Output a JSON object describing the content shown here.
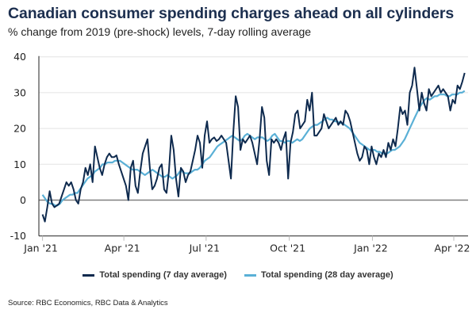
{
  "chart_data": {
    "type": "line",
    "title": "Canadian consumer spending charges ahead on all cylinders",
    "subtitle": "% change from 2019 (pre-shock) levels, 7-day rolling average",
    "xlabel": "",
    "ylabel": "",
    "ylim": [
      -10,
      40
    ],
    "yticks": [
      "40",
      "30",
      "20",
      "10",
      "0",
      "-10"
    ],
    "ytick_values": [
      40,
      30,
      20,
      10,
      0,
      -10
    ],
    "xticks": [
      "Jan '21",
      "Apr '21",
      "Jul '21",
      "Oct '21",
      "Jan '22",
      "Apr '22"
    ],
    "xtick_days": [
      0,
      90,
      181,
      273,
      365,
      455
    ],
    "x_start": "2021-01-01",
    "x_step_days": 4,
    "grid": true,
    "legend_position": "bottom",
    "series": [
      {
        "name": "Total spending (7 day average)",
        "color": "#0e2a4e",
        "values": [
          -4,
          -6,
          -2,
          2.5,
          -1,
          -2,
          -1.5,
          -1,
          1,
          3,
          5,
          4,
          5,
          3,
          0,
          -1,
          3,
          5,
          9,
          7,
          10,
          5,
          15,
          12,
          9,
          7,
          10,
          12,
          13,
          12,
          12,
          12.5,
          10,
          8,
          6,
          4,
          0,
          9,
          11,
          4,
          2,
          8,
          13,
          15,
          17,
          9,
          3,
          4,
          6,
          9,
          10,
          3,
          2,
          8,
          18,
          14,
          6,
          1,
          9,
          8,
          5,
          7,
          8,
          11,
          14,
          18,
          16,
          9,
          18,
          22,
          16,
          17,
          17.5,
          16.5,
          17,
          18,
          17,
          16,
          11,
          6,
          19,
          29,
          26,
          14,
          17,
          16,
          17,
          18,
          16,
          13,
          10,
          17,
          26,
          23,
          11,
          7,
          17,
          16,
          17,
          16,
          14,
          17,
          19,
          6,
          16,
          19,
          24,
          25,
          20,
          21,
          22,
          28,
          25,
          30,
          18,
          18,
          19,
          20,
          24,
          22,
          20,
          21,
          22,
          23,
          21,
          22,
          21,
          25,
          24,
          22,
          19,
          16,
          13,
          11,
          12,
          15,
          14,
          10,
          15,
          12,
          10,
          13,
          12,
          14,
          12,
          16,
          14,
          17,
          15,
          20,
          26,
          24,
          25,
          21,
          30,
          32,
          37,
          31,
          25,
          30,
          27,
          25,
          31,
          29,
          30,
          31,
          32,
          30,
          31,
          30,
          29,
          25,
          28,
          27,
          32,
          31,
          33,
          35.5
        ]
      },
      {
        "name": "Total spending (28 day average)",
        "color": "#5ab0d6",
        "values": [
          1.5,
          0.5,
          -0.5,
          -1,
          -1,
          -1.5,
          -1.5,
          -1,
          0,
          0.5,
          1,
          1.5,
          1.5,
          2,
          2,
          3,
          4,
          5,
          6,
          6.5,
          7,
          8,
          8.5,
          9,
          10,
          10,
          10.5,
          10.5,
          10.5,
          11,
          11,
          11,
          10.5,
          10,
          9.5,
          9,
          8.5,
          8.5,
          8.5,
          8,
          7.5,
          7,
          7.5,
          8,
          8.5,
          8,
          7.5,
          7,
          6.5,
          6.5,
          7,
          6.5,
          6,
          6.5,
          7,
          8,
          8,
          7.5,
          7.5,
          7.5,
          8,
          8.5,
          8.5,
          9,
          10,
          11,
          11.5,
          12,
          13,
          14,
          15,
          15.5,
          16,
          16.5,
          17,
          17.5,
          18,
          17.5,
          17,
          16.5,
          17,
          18,
          18.5,
          18,
          17.5,
          17,
          17.5,
          17.5,
          17.5,
          17,
          16.5,
          17,
          18,
          18.5,
          17.5,
          16.5,
          16.5,
          16,
          16.5,
          16.5,
          16,
          16.5,
          17,
          16.5,
          17,
          18,
          19,
          20,
          20.5,
          21,
          21,
          21.5,
          22,
          22.5,
          23,
          22.5,
          22.5,
          22,
          22,
          21.5,
          21.5,
          21,
          20.5,
          20,
          19,
          18,
          17,
          16,
          15.5,
          15,
          14.5,
          14,
          14,
          14,
          13.5,
          13.5,
          13,
          13,
          13,
          13.5,
          14,
          14,
          14.5,
          15,
          16,
          17,
          18.5,
          20,
          21.5,
          23,
          24.5,
          26,
          27,
          28,
          28.5,
          28,
          28.5,
          29,
          29,
          29.5,
          29.5,
          29.5,
          29,
          29,
          29.5,
          29.5,
          29.5,
          30,
          30,
          30.5
        ]
      }
    ]
  },
  "legend": [
    {
      "label": "Total spending (7 day average)",
      "color": "#0e2a4e"
    },
    {
      "label": "Total spending (28 day average)",
      "color": "#5ab0d6"
    }
  ],
  "source": "Source: RBC Economics, RBC Data & Analytics"
}
